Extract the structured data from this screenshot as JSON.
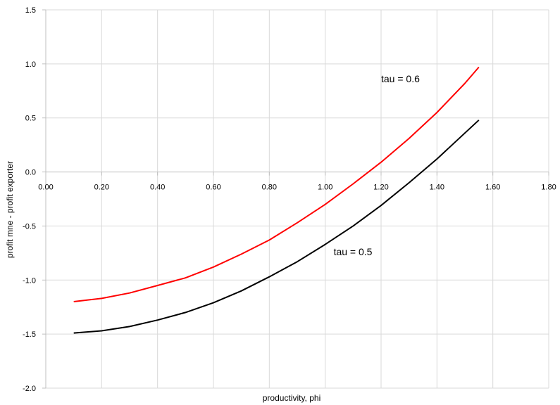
{
  "chart_data": {
    "type": "line",
    "title": "",
    "xlabel": "productivity, phi",
    "ylabel": "profit mne - profit exporter",
    "xlim": [
      0.0,
      1.8
    ],
    "ylim": [
      -2.0,
      1.5
    ],
    "x_ticks": [
      0.0,
      0.2,
      0.4,
      0.6,
      0.8,
      1.0,
      1.2,
      1.4,
      1.6,
      1.8
    ],
    "x_tick_labels": [
      "0.00",
      "0.20",
      "0.40",
      "0.60",
      "0.80",
      "1.00",
      "1.20",
      "1.40",
      "1.60",
      "1.80"
    ],
    "y_ticks": [
      1.5,
      1.0,
      0.5,
      0.0,
      -0.5,
      -1.0,
      -1.5,
      -2.0
    ],
    "y_tick_labels": [
      "1.5",
      "1.0",
      "0.5",
      "0.0",
      "-0.5",
      "-1.0",
      "-1.5",
      "-2.0"
    ],
    "grid": true,
    "legend": "none",
    "series": [
      {
        "color": "#ff0000",
        "x": [
          0.1,
          0.2,
          0.3,
          0.4,
          0.5,
          0.6,
          0.7,
          0.8,
          0.9,
          1.0,
          1.1,
          1.2,
          1.3,
          1.4,
          1.5,
          1.55
        ],
        "y": [
          -1.2,
          -1.17,
          -1.12,
          -1.05,
          -0.98,
          -0.88,
          -0.76,
          -0.63,
          -0.47,
          -0.3,
          -0.11,
          0.09,
          0.31,
          0.55,
          0.82,
          0.97
        ]
      },
      {
        "color": "#000000",
        "x": [
          0.1,
          0.2,
          0.3,
          0.4,
          0.5,
          0.6,
          0.7,
          0.8,
          0.9,
          1.0,
          1.1,
          1.2,
          1.3,
          1.4,
          1.5,
          1.55
        ],
        "y": [
          -1.49,
          -1.47,
          -1.43,
          -1.37,
          -1.3,
          -1.21,
          -1.1,
          -0.97,
          -0.83,
          -0.67,
          -0.5,
          -0.31,
          -0.1,
          0.12,
          0.36,
          0.48
        ]
      }
    ],
    "annotations": [
      {
        "text": "tau = 0.6",
        "x": 1.2,
        "y": 0.83
      },
      {
        "text": "tau = 0.5",
        "x": 1.03,
        "y": -0.77
      }
    ]
  }
}
